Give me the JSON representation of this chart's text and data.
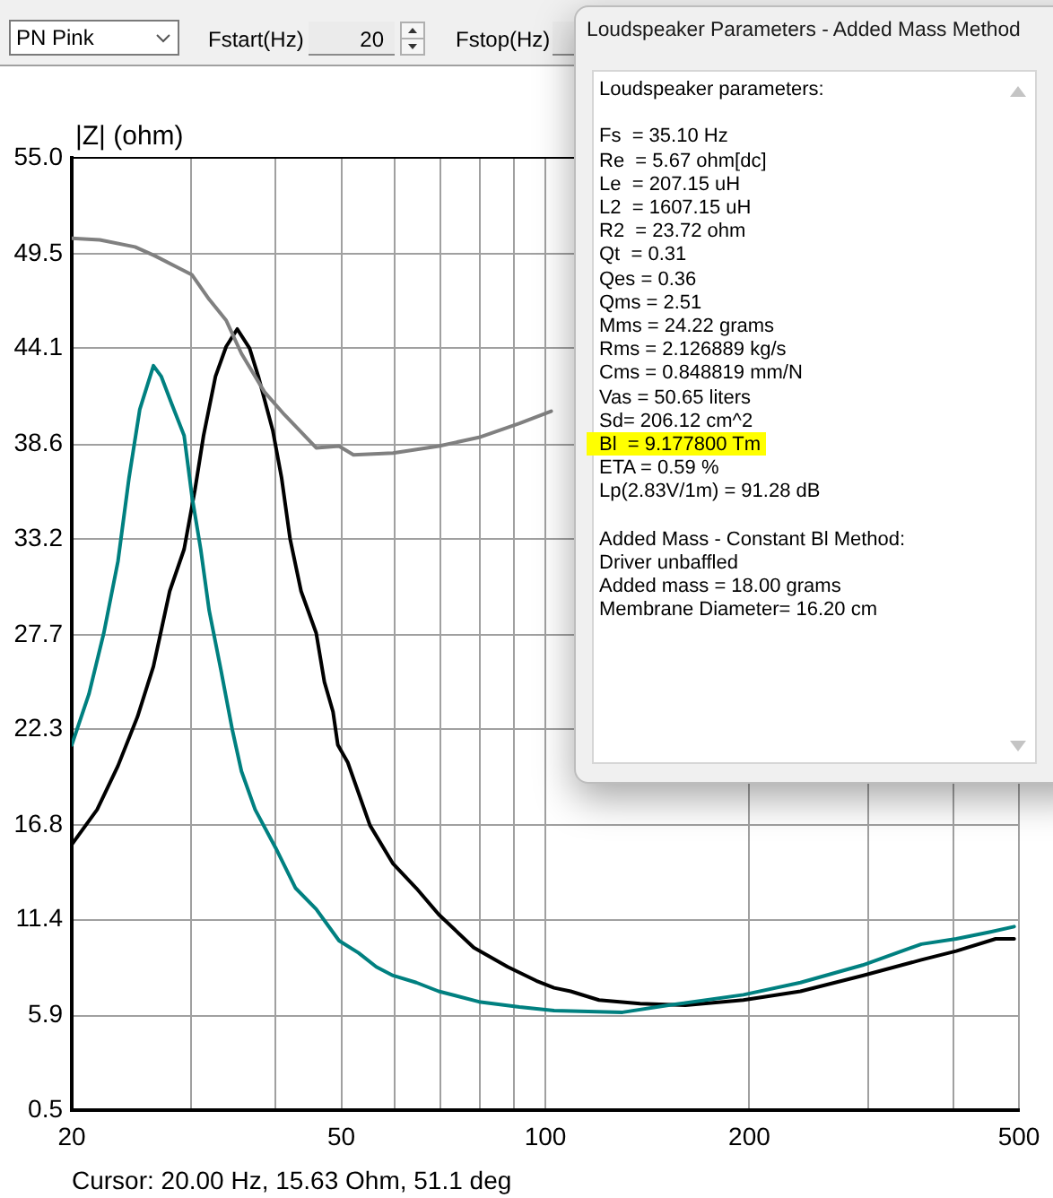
{
  "chart_data": {
    "type": "line",
    "ylabel": "|Z| (ohm)",
    "log": "x",
    "xlim": [
      20,
      500
    ],
    "xticks": [
      20,
      {
        "value": 30,
        "label": null
      },
      {
        "value": 40,
        "label": null
      },
      50,
      {
        "value": 60,
        "label": null
      },
      {
        "value": 70,
        "label": null
      },
      {
        "value": 80,
        "label": null
      },
      {
        "value": 90,
        "label": null
      },
      100,
      200,
      {
        "value": 300,
        "label": null
      },
      {
        "value": 400,
        "label": null
      },
      500
    ],
    "ylim": [
      0.5,
      55.0
    ],
    "yticks": [
      0.5,
      5.9,
      11.4,
      16.8,
      22.3,
      27.7,
      33.2,
      38.6,
      44.1,
      49.5,
      {
        "value": 55.0,
        "label": "55.0"
      }
    ],
    "grid": true,
    "series": [
      {
        "color": "#808080",
        "x": [
          20,
          22.0,
          24.8,
          26.5,
          28.4,
          30.1,
          31.9,
          33.8,
          35.6,
          38.5,
          41.2,
          45.9,
          49.6,
          52.1,
          59.6,
          69.6,
          79.8,
          91.6,
          102
        ],
        "values": [
          50.4,
          50.3,
          49.9,
          49.4,
          48.8,
          48.3,
          46.9,
          45.7,
          43.8,
          41.6,
          40.3,
          38.4,
          38.5,
          38.0,
          38.1,
          38.5,
          39.0,
          39.8,
          40.5
        ]
      },
      {
        "color": "#008080",
        "x": [
          20,
          21.2,
          22.3,
          23.4,
          24.3,
          25.2,
          26.4,
          27.1,
          28.1,
          29.3,
          30.1,
          31.0,
          31.9,
          33.2,
          34.5,
          35.6,
          37.3,
          40.0,
          42.8,
          45.9,
          49.6,
          53.0,
          56.3,
          59.6,
          64.5,
          69.6,
          79.8,
          91.6,
          103,
          130,
          152,
          196,
          238,
          294,
          359,
          404,
          454,
          492
        ],
        "values": [
          21.4,
          24.3,
          27.8,
          31.9,
          36.7,
          40.6,
          43.1,
          42.5,
          40.9,
          39.1,
          35.6,
          32.6,
          29.1,
          25.7,
          22.3,
          19.9,
          17.7,
          15.5,
          13.2,
          12.0,
          10.2,
          9.5,
          8.7,
          8.2,
          7.8,
          7.3,
          6.7,
          6.4,
          6.2,
          6.1,
          6.5,
          7.1,
          7.8,
          8.8,
          10.0,
          10.3,
          10.7,
          11.0
        ]
      },
      {
        "color": "#000000",
        "x": [
          20,
          21.8,
          23.4,
          25.0,
          26.4,
          27.9,
          29.3,
          30.4,
          31.3,
          32.6,
          33.8,
          35.1,
          36.6,
          37.7,
          39.6,
          40.8,
          42.0,
          43.6,
          45.9,
          47.2,
          48.6,
          49.4,
          51.1,
          55.1,
          59.6,
          64.5,
          69.6,
          78.4,
          88.0,
          97.0,
          103,
          109,
          120,
          138,
          161,
          196,
          238,
          294,
          359,
          404,
          462,
          492
        ],
        "values": [
          15.7,
          17.7,
          20.2,
          23.0,
          25.9,
          30.2,
          32.6,
          36.0,
          39.1,
          42.5,
          44.2,
          45.2,
          44.1,
          42.5,
          39.4,
          36.7,
          33.2,
          30.2,
          27.8,
          25.0,
          23.3,
          21.4,
          20.4,
          16.8,
          14.6,
          13.2,
          11.7,
          9.8,
          8.7,
          7.9,
          7.5,
          7.3,
          6.8,
          6.6,
          6.5,
          6.8,
          7.3,
          8.2,
          9.1,
          9.6,
          10.3,
          10.3
        ]
      }
    ],
    "annotations": [
      "PN Pink",
      "Fstart(Hz)",
      "20",
      "Fstop(Hz)",
      "Loudspeaker Parameters - Added Mass Method",
      "Loudspeaker parameters:",
      "Fs  = 35.10 Hz",
      "Re  = 5.67 ohm[dc]",
      "Le  = 207.15 uH",
      "L2  = 1607.15 uH",
      "R2  = 23.72 ohm",
      "Qt  = 0.31",
      "Qes = 0.36",
      "Qms = 2.51",
      "Mms = 24.22 grams",
      "Rms = 2.126889 kg/s",
      "Cms = 0.848819 mm/N",
      "Vas = 50.65 liters",
      "Sd= 206.12 cm^2",
      "Bl  = 9.177800 Tm",
      "ETA = 0.59 %",
      "Lp(2.83V/1m) = 91.28 dB",
      "Added Mass - Constant Bl Method:",
      "Driver unbaffled",
      "Added mass = 18.00 grams",
      "Membrane Diameter= 16.20 cm",
      "Cursor: 20.00 Hz, 15.63 Ohm, 51.1 deg"
    ]
  }
}
